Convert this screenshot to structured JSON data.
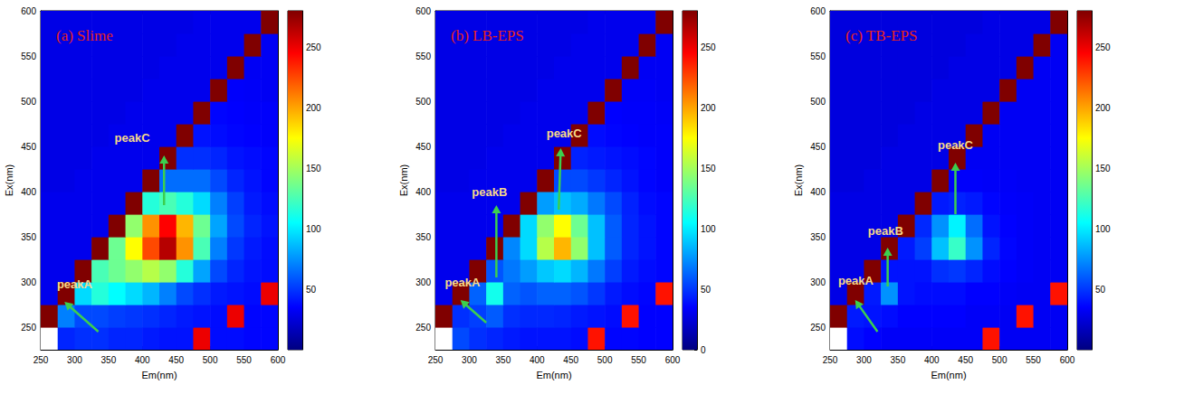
{
  "chart_data": [
    {
      "type": "heatmap",
      "title": "(a) Slime",
      "x_label": "Em(nm)",
      "y_label": "Ex(nm)",
      "xlim": [
        250,
        600
      ],
      "ylim": [
        225,
        600
      ],
      "xticks": [
        250,
        300,
        350,
        400,
        450,
        500,
        550,
        600
      ],
      "yticks": [
        250,
        300,
        350,
        400,
        450,
        500,
        550,
        600
      ],
      "x_bins": [
        250,
        275,
        300,
        325,
        350,
        375,
        400,
        425,
        450,
        475,
        500,
        525,
        550,
        575,
        600
      ],
      "y_bins": [
        225,
        250,
        275,
        300,
        325,
        350,
        375,
        400,
        425,
        450,
        475,
        500,
        525,
        550,
        575,
        600
      ],
      "cells": [
        [
          null,
          45,
          48,
          48,
          45,
          45,
          42,
          40,
          40,
          250,
          38,
          38,
          36,
          36
        ],
        [
          280,
          70,
          55,
          55,
          52,
          50,
          48,
          45,
          42,
          40,
          38,
          250,
          36,
          36
        ],
        [
          30,
          280,
          95,
          115,
          105,
          95,
          85,
          70,
          55,
          48,
          42,
          40,
          38,
          250
        ],
        [
          30,
          30,
          280,
          125,
          135,
          145,
          155,
          145,
          115,
          80,
          55,
          45,
          40,
          38
        ],
        [
          30,
          30,
          30,
          280,
          135,
          175,
          225,
          265,
          205,
          125,
          70,
          50,
          42,
          38
        ],
        [
          30,
          30,
          30,
          30,
          280,
          145,
          205,
          245,
          195,
          135,
          80,
          55,
          45,
          40
        ],
        [
          30,
          30,
          30,
          30,
          30,
          280,
          115,
          125,
          115,
          95,
          70,
          52,
          42,
          38
        ],
        [
          28,
          28,
          30,
          30,
          30,
          30,
          280,
          65,
          65,
          65,
          55,
          45,
          40,
          36
        ],
        [
          28,
          28,
          28,
          30,
          30,
          30,
          30,
          280,
          48,
          48,
          45,
          40,
          38,
          36
        ],
        [
          28,
          28,
          28,
          28,
          30,
          30,
          30,
          30,
          280,
          40,
          38,
          36,
          35,
          34
        ],
        [
          28,
          28,
          28,
          28,
          28,
          30,
          30,
          30,
          30,
          280,
          36,
          35,
          34,
          34
        ],
        [
          28,
          28,
          28,
          28,
          28,
          28,
          30,
          30,
          30,
          30,
          280,
          34,
          33,
          32
        ],
        [
          28,
          28,
          28,
          28,
          28,
          28,
          28,
          30,
          30,
          30,
          30,
          280,
          32,
          32
        ],
        [
          28,
          28,
          28,
          28,
          28,
          28,
          28,
          28,
          30,
          30,
          30,
          30,
          280,
          32
        ],
        [
          28,
          28,
          28,
          28,
          28,
          28,
          28,
          28,
          28,
          30,
          30,
          30,
          30,
          280
        ]
      ],
      "colorbar_lim": [
        0,
        280
      ],
      "colorbar_ticks": [
        50,
        100,
        150,
        200,
        250
      ],
      "annotations": [
        {
          "text": "peakA",
          "x": 300,
          "y": 298,
          "arrow_from": [
            335,
            245
          ],
          "arrow_to": [
            285,
            278
          ]
        },
        {
          "text": "peakC",
          "x": 385,
          "y": 460,
          "arrow_from": [
            432,
            385
          ],
          "arrow_to": [
            432,
            440
          ]
        }
      ]
    },
    {
      "type": "heatmap",
      "title": "(b) LB-EPS",
      "x_label": "Em(nm)",
      "y_label": "Ex(nm)",
      "xlim": [
        250,
        600
      ],
      "ylim": [
        225,
        600
      ],
      "xticks": [
        250,
        300,
        350,
        400,
        450,
        500,
        550,
        600
      ],
      "yticks": [
        250,
        300,
        350,
        400,
        450,
        500,
        550,
        600
      ],
      "x_bins": [
        250,
        275,
        300,
        325,
        350,
        375,
        400,
        425,
        450,
        475,
        500,
        525,
        550,
        575,
        600
      ],
      "y_bins": [
        225,
        250,
        275,
        300,
        325,
        350,
        375,
        400,
        425,
        450,
        475,
        500,
        525,
        550,
        575,
        600
      ],
      "cells": [
        [
          null,
          55,
          48,
          45,
          42,
          40,
          40,
          40,
          38,
          240,
          36,
          36,
          35,
          35
        ],
        [
          280,
          48,
          52,
          60,
          48,
          46,
          46,
          45,
          42,
          40,
          38,
          240,
          35,
          35
        ],
        [
          30,
          280,
          62,
          110,
          62,
          58,
          62,
          62,
          58,
          50,
          42,
          38,
          36,
          240
        ],
        [
          30,
          30,
          280,
          58,
          68,
          78,
          90,
          95,
          85,
          68,
          52,
          42,
          38,
          36
        ],
        [
          30,
          30,
          30,
          280,
          72,
          95,
          155,
          195,
          145,
          88,
          60,
          45,
          40,
          36
        ],
        [
          30,
          30,
          30,
          30,
          280,
          95,
          145,
          175,
          135,
          88,
          60,
          45,
          40,
          36
        ],
        [
          30,
          30,
          30,
          30,
          30,
          280,
          78,
          88,
          82,
          68,
          55,
          44,
          38,
          36
        ],
        [
          28,
          28,
          30,
          30,
          30,
          30,
          280,
          55,
          55,
          50,
          45,
          40,
          36,
          34
        ],
        [
          28,
          28,
          28,
          30,
          30,
          30,
          30,
          280,
          44,
          42,
          40,
          38,
          36,
          34
        ],
        [
          28,
          28,
          28,
          28,
          30,
          30,
          30,
          30,
          280,
          38,
          36,
          35,
          34,
          34
        ],
        [
          28,
          28,
          28,
          28,
          28,
          30,
          30,
          30,
          30,
          280,
          35,
          34,
          34,
          33
        ],
        [
          28,
          28,
          28,
          28,
          28,
          28,
          30,
          30,
          30,
          30,
          280,
          33,
          33,
          32
        ],
        [
          28,
          28,
          28,
          28,
          28,
          28,
          28,
          30,
          30,
          30,
          30,
          280,
          32,
          32
        ],
        [
          28,
          28,
          28,
          28,
          28,
          28,
          28,
          28,
          30,
          30,
          30,
          30,
          280,
          32
        ],
        [
          28,
          28,
          28,
          28,
          28,
          28,
          28,
          28,
          28,
          30,
          30,
          30,
          30,
          280
        ]
      ],
      "colorbar_lim": [
        0,
        280
      ],
      "colorbar_ticks": [
        0,
        50,
        100,
        150,
        200,
        250
      ],
      "annotations": [
        {
          "text": "peakA",
          "x": 290,
          "y": 300,
          "arrow_from": [
            325,
            255
          ],
          "arrow_to": [
            287,
            280
          ]
        },
        {
          "text": "peakB",
          "x": 330,
          "y": 400,
          "arrow_from": [
            340,
            305
          ],
          "arrow_to": [
            340,
            385
          ]
        },
        {
          "text": "peakC",
          "x": 440,
          "y": 465,
          "arrow_from": [
            432,
            380
          ],
          "arrow_to": [
            435,
            448
          ]
        }
      ]
    },
    {
      "type": "heatmap",
      "title": "(c) TB-EPS",
      "x_label": "Em(nm)",
      "y_label": "Ex(nm)",
      "xlim": [
        250,
        600
      ],
      "ylim": [
        225,
        600
      ],
      "xticks": [
        250,
        300,
        350,
        400,
        450,
        500,
        550,
        600
      ],
      "yticks": [
        250,
        300,
        350,
        400,
        450,
        500,
        550,
        600
      ],
      "x_bins": [
        250,
        275,
        300,
        325,
        350,
        375,
        400,
        425,
        450,
        475,
        500,
        525,
        550,
        575,
        600
      ],
      "y_bins": [
        225,
        250,
        275,
        300,
        325,
        350,
        375,
        400,
        425,
        450,
        475,
        500,
        525,
        550,
        575,
        600
      ],
      "cells": [
        [
          null,
          38,
          35,
          33,
          33,
          33,
          33,
          33,
          33,
          240,
          32,
          32,
          32,
          32
        ],
        [
          280,
          42,
          40,
          38,
          35,
          35,
          35,
          35,
          33,
          33,
          32,
          240,
          32,
          32
        ],
        [
          28,
          280,
          42,
          75,
          40,
          38,
          38,
          38,
          35,
          35,
          33,
          32,
          32,
          240
        ],
        [
          28,
          28,
          280,
          40,
          40,
          40,
          48,
          50,
          45,
          38,
          35,
          33,
          32,
          32
        ],
        [
          28,
          28,
          28,
          280,
          42,
          52,
          88,
          120,
          75,
          45,
          36,
          33,
          32,
          32
        ],
        [
          28,
          28,
          28,
          28,
          280,
          46,
          75,
          102,
          65,
          40,
          35,
          33,
          32,
          32
        ],
        [
          28,
          28,
          28,
          28,
          28,
          280,
          42,
          44,
          42,
          36,
          34,
          33,
          32,
          32
        ],
        [
          26,
          26,
          28,
          28,
          28,
          28,
          280,
          34,
          34,
          33,
          33,
          32,
          32,
          32
        ],
        [
          26,
          26,
          26,
          28,
          28,
          28,
          28,
          280,
          32,
          32,
          32,
          32,
          32,
          32
        ],
        [
          26,
          26,
          26,
          26,
          28,
          28,
          28,
          28,
          280,
          32,
          32,
          32,
          32,
          32
        ],
        [
          26,
          26,
          26,
          26,
          26,
          28,
          28,
          28,
          28,
          280,
          32,
          32,
          32,
          32
        ],
        [
          26,
          26,
          26,
          26,
          26,
          26,
          28,
          28,
          28,
          28,
          280,
          32,
          32,
          32
        ],
        [
          26,
          26,
          26,
          26,
          26,
          26,
          26,
          28,
          28,
          28,
          28,
          280,
          32,
          32
        ],
        [
          26,
          26,
          26,
          26,
          26,
          26,
          26,
          26,
          28,
          28,
          28,
          28,
          280,
          32
        ],
        [
          26,
          26,
          26,
          26,
          26,
          26,
          26,
          26,
          26,
          28,
          28,
          28,
          28,
          280
        ]
      ],
      "colorbar_lim": [
        0,
        280
      ],
      "colorbar_ticks": [
        50,
        100,
        150,
        200,
        250
      ],
      "annotations": [
        {
          "text": "peakA",
          "x": 288,
          "y": 302,
          "arrow_from": [
            320,
            245
          ],
          "arrow_to": [
            287,
            280
          ]
        },
        {
          "text": "peakB",
          "x": 332,
          "y": 357,
          "arrow_from": [
            335,
            295
          ],
          "arrow_to": [
            335,
            338
          ]
        },
        {
          "text": "peakC",
          "x": 435,
          "y": 452,
          "arrow_from": [
            435,
            375
          ],
          "arrow_to": [
            435,
            432
          ]
        }
      ]
    }
  ]
}
